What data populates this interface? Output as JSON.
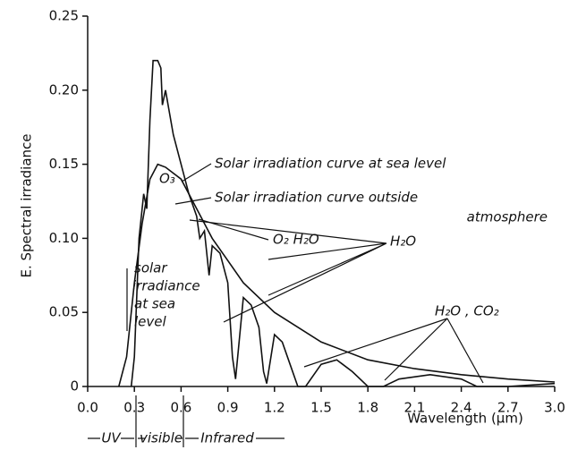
{
  "chart_data": {
    "type": "line",
    "x_label": "Wavelength (µm)",
    "y_label": "E. Spectral irradiance",
    "xlim": [
      0,
      3
    ],
    "ylim": [
      0,
      0.25
    ],
    "xticks": [
      {
        "value": 0,
        "label": "0.0"
      },
      0.3,
      0.6,
      0.9,
      1.2,
      1.5,
      1.8,
      2.1,
      2.4,
      2.7,
      {
        "value": 3,
        "label": "3.0"
      }
    ],
    "yticks": [
      0,
      0.05,
      {
        "value": 0.1,
        "label": "0.10"
      },
      0.15,
      {
        "value": 0.2,
        "label": "0.20"
      },
      0.25
    ],
    "color": "#111111",
    "series": [
      {
        "x": [
          0.28,
          0.3,
          0.33,
          0.36,
          0.38,
          0.4,
          0.42,
          0.45,
          0.47,
          0.48,
          0.5,
          0.55,
          0.6,
          0.65,
          0.7,
          0.72,
          0.75,
          0.78,
          0.8,
          0.85,
          0.9,
          0.93,
          0.95,
          1.0,
          1.05,
          1.1,
          1.13,
          1.15,
          1.2,
          1.25,
          1.3,
          1.35,
          1.4,
          1.5,
          1.6,
          1.7,
          1.8,
          1.9,
          2.0,
          2.2,
          2.4,
          2.5,
          2.7,
          3.0
        ],
        "values": [
          0.0,
          0.02,
          0.1,
          0.13,
          0.12,
          0.18,
          0.22,
          0.22,
          0.215,
          0.19,
          0.2,
          0.17,
          0.15,
          0.13,
          0.115,
          0.1,
          0.105,
          0.075,
          0.095,
          0.09,
          0.07,
          0.02,
          0.005,
          0.06,
          0.055,
          0.04,
          0.01,
          0.002,
          0.035,
          0.03,
          0.015,
          0.0,
          0.0,
          0.015,
          0.018,
          0.01,
          0.0,
          0.0,
          0.005,
          0.008,
          0.005,
          0.0,
          0.0,
          0.002
        ]
      },
      {
        "x": [
          0.2,
          0.25,
          0.3,
          0.35,
          0.4,
          0.45,
          0.5,
          0.6,
          0.7,
          0.8,
          0.9,
          1.0,
          1.2,
          1.5,
          1.8,
          2.1,
          2.4,
          2.7,
          3.0
        ],
        "values": [
          0.0,
          0.02,
          0.07,
          0.11,
          0.14,
          0.15,
          0.148,
          0.14,
          0.12,
          0.1,
          0.085,
          0.07,
          0.05,
          0.03,
          0.018,
          0.012,
          0.008,
          0.005,
          0.003
        ]
      }
    ],
    "annotations": [
      {
        "text": "Solar irradiation curve at sea level"
      },
      {
        "text": "Solar irradiation curve outside"
      },
      {
        "text": "atmosphere"
      },
      {
        "text": "O₃"
      },
      {
        "text": "O₂ H₂O"
      },
      {
        "text": "H₂O"
      },
      {
        "text": "H₂O , CO₂"
      },
      {
        "text": "solar"
      },
      {
        "text": "irradiance"
      },
      {
        "text": "at sea"
      },
      {
        "text": "level"
      },
      {
        "text": "UV"
      },
      {
        "text": "visible"
      },
      {
        "text": "Infrared"
      }
    ]
  }
}
